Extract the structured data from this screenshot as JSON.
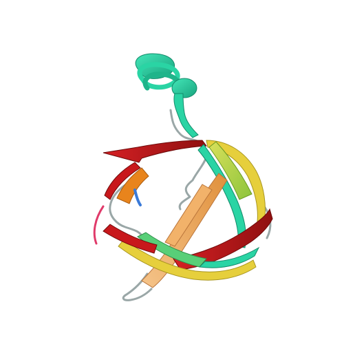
{
  "image": {
    "subject": "protein-ribbon-cartoon",
    "background_color": "#ffffff",
    "colors": {
      "helix": "#2ad4a4",
      "helix_dark": "#1fb48a",
      "coil": "#9aa7a7",
      "strand_red": "#c8181c",
      "strand_red_dark": "#8f1010",
      "strand_orange": "#e8841c",
      "strand_peach": "#f2b26a",
      "strand_yellow": "#e6cf3c",
      "strand_lime": "#b4d23c",
      "strand_green": "#58cf78",
      "strand_teal": "#2ad4a4",
      "loop_blue": "#3a7ad8",
      "loop_pink": "#e03a6a"
    }
  }
}
